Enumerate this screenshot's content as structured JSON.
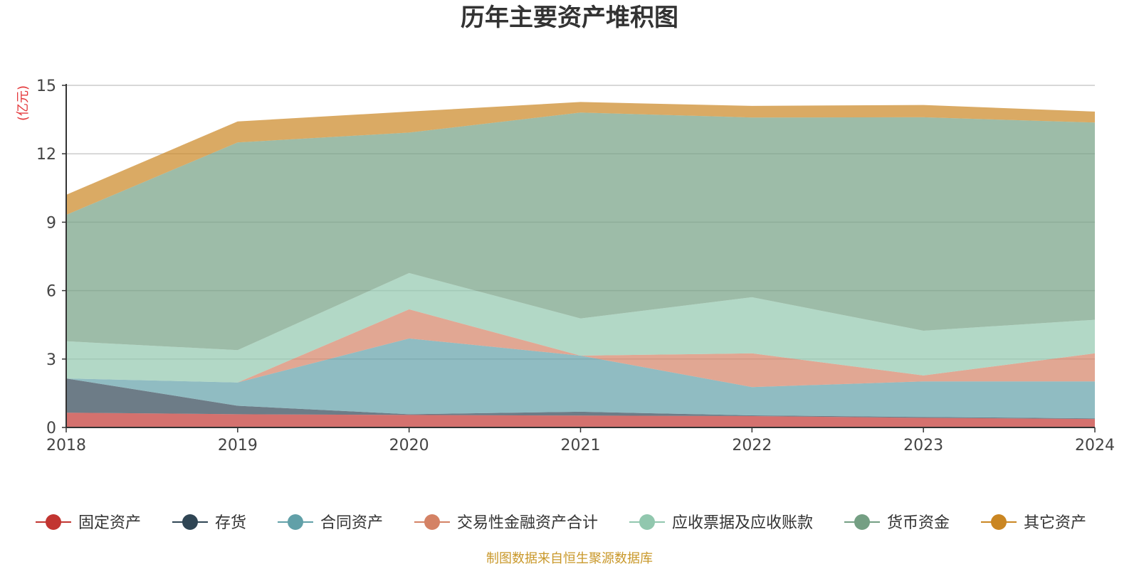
{
  "chart_data": {
    "type": "area",
    "stacked": true,
    "title": "历年主要资产堆积图",
    "unit_label": "(亿元)",
    "categories": [
      "2018",
      "2019",
      "2020",
      "2021",
      "2022",
      "2023",
      "2024"
    ],
    "ylim": [
      0,
      15
    ],
    "y_ticks": [
      "0",
      "3",
      "6",
      "9",
      "12",
      "15"
    ],
    "grid": true,
    "legend_position": "bottom",
    "series": [
      {
        "name": "固定资产",
        "color": "#c23531",
        "values": [
          0.65,
          0.58,
          0.55,
          0.52,
          0.5,
          0.42,
          0.37
        ]
      },
      {
        "name": "存货",
        "color": "#2f4554",
        "values": [
          1.5,
          0.37,
          0.03,
          0.17,
          0.03,
          0.04,
          0.03
        ]
      },
      {
        "name": "合同资产",
        "color": "#61a0a8",
        "values": [
          0.0,
          1.02,
          3.32,
          2.46,
          1.24,
          1.56,
          1.62
        ]
      },
      {
        "name": "交易性金融资产合计",
        "color": "#d48265",
        "values": [
          0.0,
          0.0,
          1.28,
          0.0,
          1.48,
          0.26,
          1.23
        ]
      },
      {
        "name": "应收票据及应收账款",
        "color": "#91c7ae",
        "values": [
          1.63,
          1.42,
          1.59,
          1.63,
          2.46,
          1.96,
          1.47
        ]
      },
      {
        "name": "货币资金",
        "color": "#749f83",
        "values": [
          5.54,
          9.11,
          6.16,
          9.03,
          7.88,
          9.36,
          8.65
        ]
      },
      {
        "name": "其它资产",
        "color": "#ca8622",
        "values": [
          0.88,
          0.92,
          0.92,
          0.46,
          0.51,
          0.54,
          0.48
        ]
      }
    ]
  },
  "source_text": "制图数据来自恒生聚源数据库",
  "colors": {
    "unit_label": "#e4393c",
    "source_text": "#c9982a",
    "grid": "#cccccc",
    "axis": "#333333"
  }
}
